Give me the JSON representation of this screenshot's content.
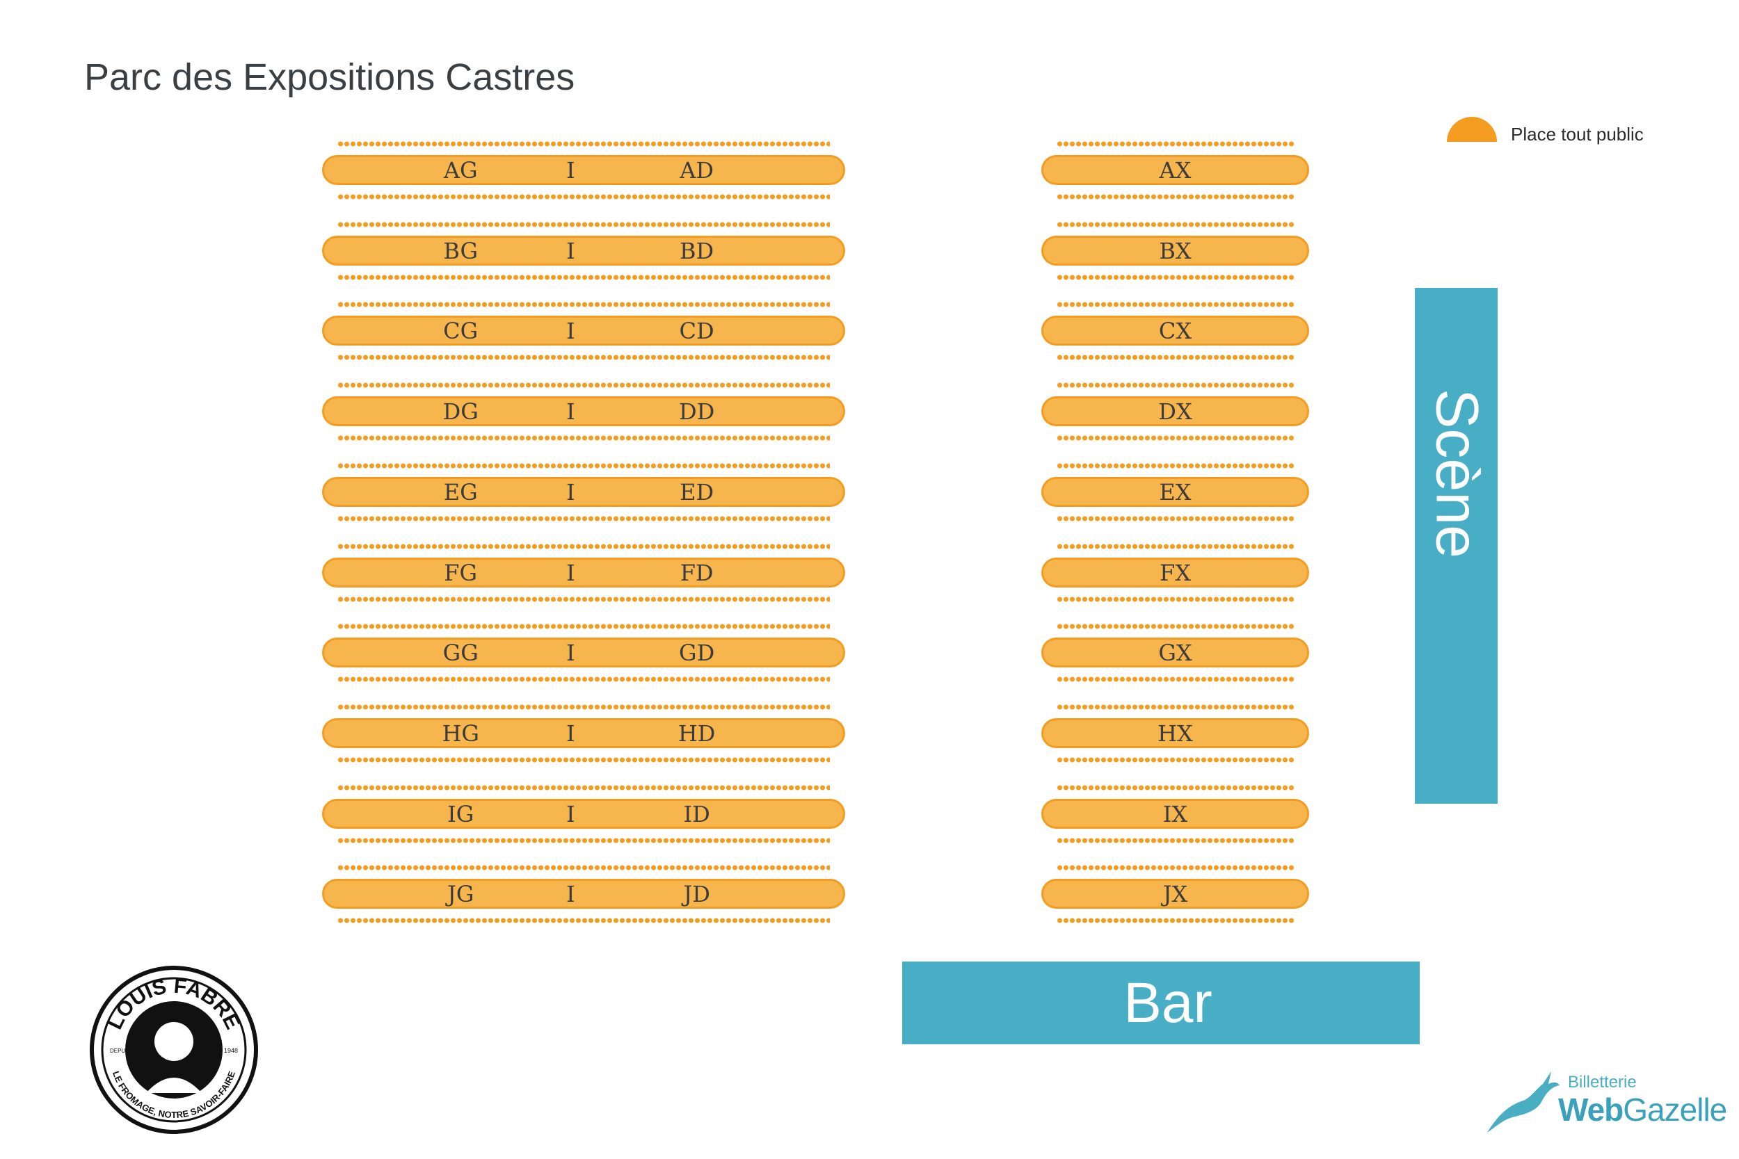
{
  "title": "Parc des Expositions Castres",
  "legend": {
    "label": "Place tout public",
    "color": "#f39c1f"
  },
  "left_block": {
    "separator": "I",
    "rows": [
      {
        "left": "AG",
        "right": "AD"
      },
      {
        "left": "BG",
        "right": "BD"
      },
      {
        "left": "CG",
        "right": "CD"
      },
      {
        "left": "DG",
        "right": "DD"
      },
      {
        "left": "EG",
        "right": "ED"
      },
      {
        "left": "FG",
        "right": "FD"
      },
      {
        "left": "GG",
        "right": "GD"
      },
      {
        "left": "HG",
        "right": "HD"
      },
      {
        "left": "IG",
        "right": "ID"
      },
      {
        "left": "JG",
        "right": "JD"
      }
    ]
  },
  "right_block": {
    "rows": [
      "AX",
      "BX",
      "CX",
      "DX",
      "EX",
      "FX",
      "GX",
      "HX",
      "IX",
      "JX"
    ]
  },
  "stage": {
    "label": "Scène",
    "color": "#48aec5"
  },
  "bar": {
    "label": "Bar",
    "color": "#48aec5"
  },
  "sponsor_logo": {
    "name": "LOUIS FABRE",
    "since_label": "DEPUIS",
    "year": "1948",
    "tagline": "LE FROMAGE, NOTRE SAVOIR-FAIRE"
  },
  "partner_logo": {
    "small": "Billetterie",
    "web": "Web",
    "brand": "Gazelle"
  }
}
